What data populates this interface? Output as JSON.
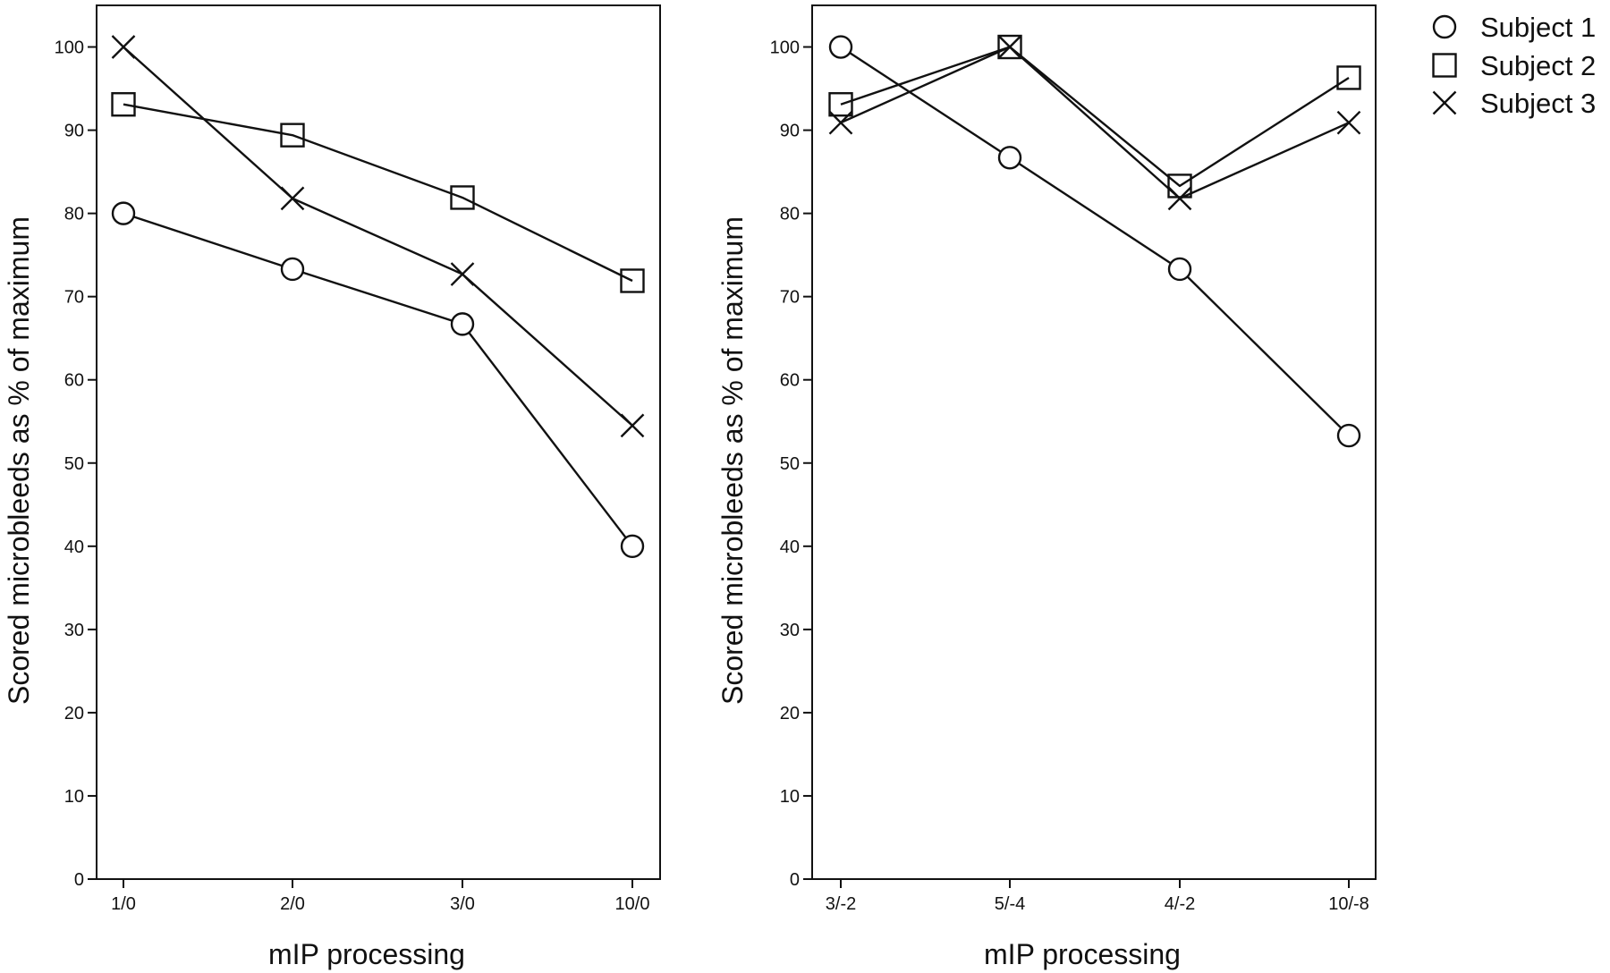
{
  "legend": {
    "entries": [
      {
        "label": "Subject 1",
        "marker": "circle"
      },
      {
        "label": "Subject 2",
        "marker": "square"
      },
      {
        "label": "Subject 3",
        "marker": "x"
      }
    ]
  },
  "colors": {
    "line": "#111111",
    "background": "#ffffff"
  },
  "chart_data": [
    {
      "type": "line",
      "title": "",
      "xlabel": "mIP processing",
      "ylabel": "Scored microbleeds as % of maximum",
      "categories": [
        "1/0",
        "2/0",
        "3/0",
        "10/0"
      ],
      "ylim": [
        0,
        105
      ],
      "yticks": [
        0,
        10,
        20,
        30,
        40,
        50,
        60,
        70,
        80,
        90,
        100
      ],
      "grid": false,
      "series": [
        {
          "name": "Subject 1",
          "marker": "circle",
          "values": [
            80,
            73.3,
            66.7,
            40
          ]
        },
        {
          "name": "Subject 2",
          "marker": "square",
          "values": [
            93.1,
            89.4,
            81.9,
            71.9
          ]
        },
        {
          "name": "Subject 3",
          "marker": "x",
          "values": [
            100,
            81.8,
            72.7,
            54.5
          ]
        }
      ]
    },
    {
      "type": "line",
      "title": "",
      "xlabel": "mIP processing",
      "ylabel": "Scored microbleeds as % of maximum",
      "categories": [
        "3/-2",
        "5/-4",
        "4/-2",
        "10/-8"
      ],
      "ylim": [
        0,
        105
      ],
      "yticks": [
        0,
        10,
        20,
        30,
        40,
        50,
        60,
        70,
        80,
        90,
        100
      ],
      "grid": false,
      "legend_position": "top-right",
      "series": [
        {
          "name": "Subject 1",
          "marker": "circle",
          "values": [
            100,
            86.7,
            73.3,
            53.3
          ]
        },
        {
          "name": "Subject 2",
          "marker": "square",
          "values": [
            93.1,
            100,
            83.3,
            96.3
          ]
        },
        {
          "name": "Subject 3",
          "marker": "x",
          "values": [
            90.9,
            100,
            81.8,
            90.9
          ]
        }
      ]
    }
  ]
}
